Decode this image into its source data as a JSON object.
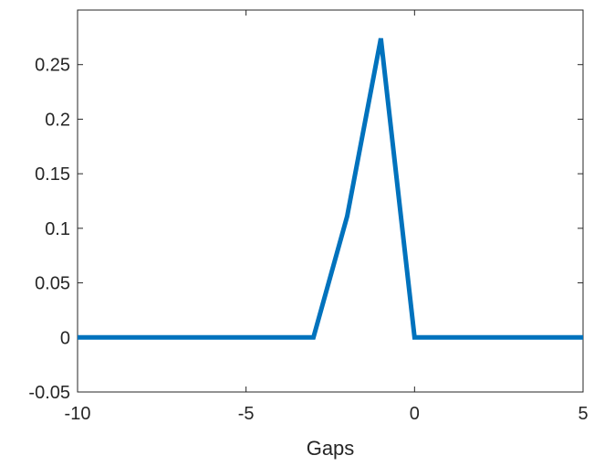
{
  "chart_data": {
    "type": "line",
    "title": "",
    "xlabel": "Gaps",
    "ylabel": "",
    "xlim": [
      -10,
      5
    ],
    "ylim": [
      -0.05,
      0.3
    ],
    "xticks": [
      -10,
      -5,
      0,
      5
    ],
    "xtick_labels": [
      "-10",
      "-5",
      "0",
      "5"
    ],
    "yticks": [
      -0.05,
      0,
      0.05,
      0.1,
      0.15,
      0.2,
      0.25
    ],
    "ytick_labels": [
      "-0.05",
      "0",
      "0.05",
      "0.1",
      "0.15",
      "0.2",
      "0.25"
    ],
    "grid": false,
    "series": [
      {
        "color": "#0072BD",
        "x": [
          -10,
          -9,
          -8,
          -7,
          -6,
          -5,
          -4,
          -3,
          -2,
          -1,
          0,
          1,
          2,
          3,
          4,
          5
        ],
        "y": [
          0,
          0,
          0,
          0,
          0,
          0,
          0,
          0,
          0.111,
          0.274,
          0,
          0,
          0,
          0,
          0,
          0
        ]
      }
    ]
  }
}
